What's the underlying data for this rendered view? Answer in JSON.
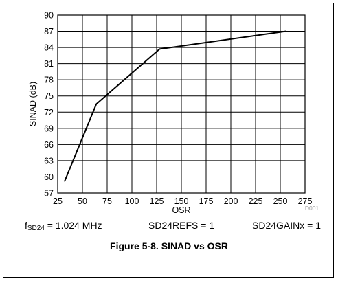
{
  "chart_data": {
    "type": "line",
    "xlabel": "OSR",
    "ylabel": "SINAD (dB)",
    "xlim": [
      25,
      275
    ],
    "ylim": [
      57,
      90
    ],
    "x_ticks": [
      "25",
      "50",
      "75",
      "100",
      "125",
      "150",
      "175",
      "200",
      "225",
      "250",
      "275"
    ],
    "y_ticks": [
      "90",
      "87",
      "84",
      "81",
      "78",
      "75",
      "72",
      "69",
      "66",
      "63",
      "60",
      "57"
    ],
    "grid": true,
    "series": [
      {
        "x": [
          32,
          64,
          128,
          256
        ],
        "y": [
          59.2,
          73.5,
          83.7,
          87.0
        ]
      }
    ],
    "figure_code": "D001"
  },
  "conditions": {
    "f_main": "f",
    "f_sub": "SD24",
    "f_value": " = 1.024 MHz",
    "refs": "SD24REFS = 1",
    "gain": "SD24GAINx = 1"
  },
  "caption": "Figure 5-8. SINAD vs OSR",
  "colors": {
    "line": "#000000",
    "grid": "#000000",
    "background": "#ffffff"
  }
}
